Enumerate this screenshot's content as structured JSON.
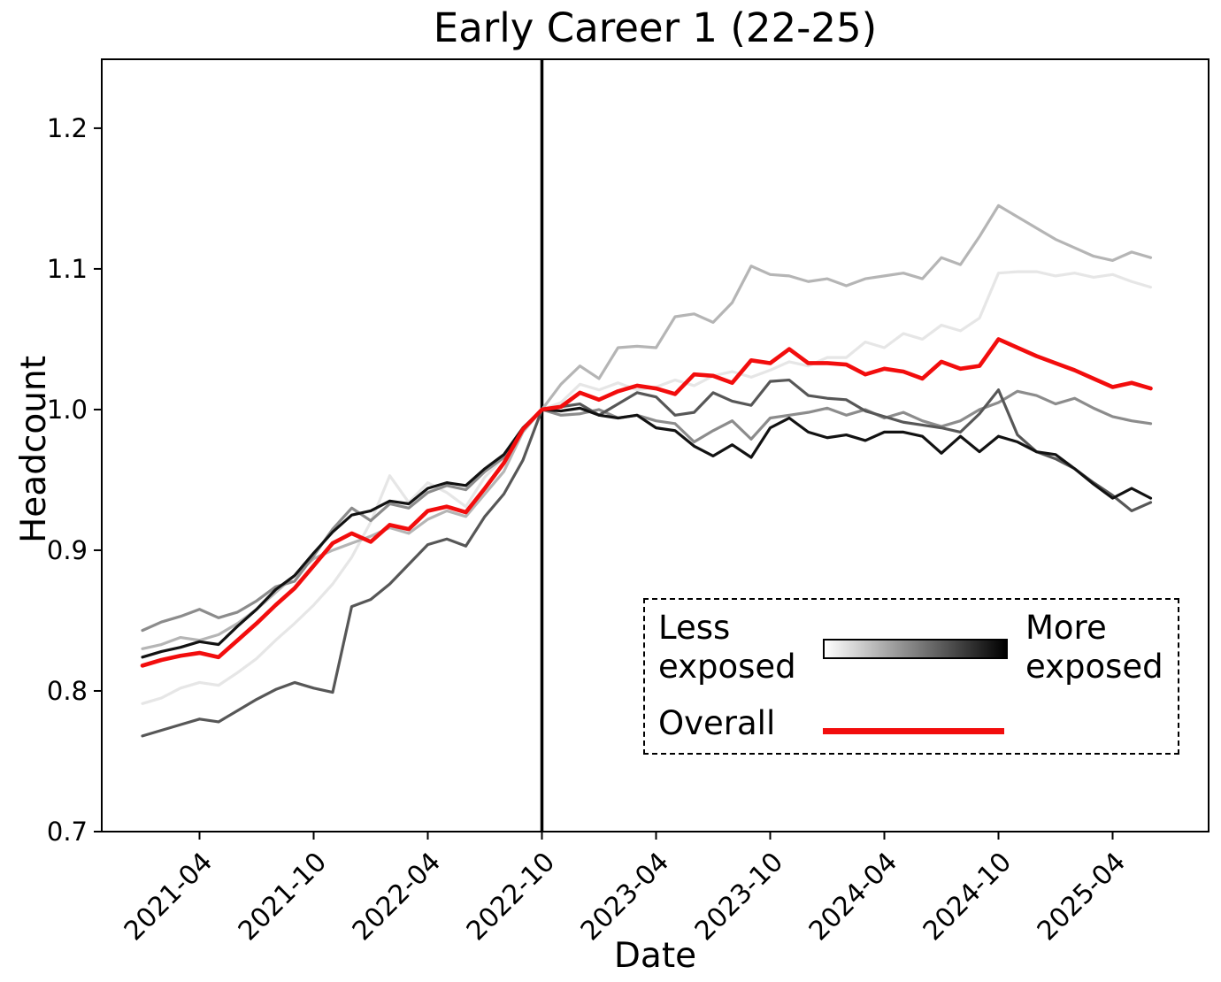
{
  "figure": {
    "title": "Early Career 1 (22-25)",
    "xlabel": "Date",
    "ylabel": "Headcount"
  },
  "chart_data": {
    "type": "line",
    "title": "Early Career 1 (22-25)",
    "xlabel": "Date",
    "ylabel": "Headcount",
    "ylim": [
      0.7,
      1.249
    ],
    "y_ticks": [
      0.7,
      0.8,
      0.9,
      1.0,
      1.1,
      1.2
    ],
    "x_tick_labels": [
      "2021-04",
      "2021-10",
      "2022-04",
      "2022-10",
      "2023-04",
      "2023-10",
      "2024-04",
      "2024-10",
      "2025-04"
    ],
    "x_tick_rotation_deg": 45,
    "event_line_x": "2022-10",
    "grid": false,
    "x": [
      "2021-01",
      "2021-02",
      "2021-03",
      "2021-04",
      "2021-05",
      "2021-06",
      "2021-07",
      "2021-08",
      "2021-09",
      "2021-10",
      "2021-11",
      "2021-12",
      "2022-01",
      "2022-02",
      "2022-03",
      "2022-04",
      "2022-05",
      "2022-06",
      "2022-07",
      "2022-08",
      "2022-09",
      "2022-10",
      "2022-11",
      "2022-12",
      "2023-01",
      "2023-02",
      "2023-03",
      "2023-04",
      "2023-05",
      "2023-06",
      "2023-07",
      "2023-08",
      "2023-09",
      "2023-10",
      "2023-11",
      "2023-12",
      "2024-01",
      "2024-02",
      "2024-03",
      "2024-04",
      "2024-05",
      "2024-06",
      "2024-07",
      "2024-08",
      "2024-09",
      "2024-10",
      "2024-11",
      "2024-12",
      "2025-01",
      "2025-02",
      "2025-03",
      "2025-04",
      "2025-05",
      "2025-06"
    ],
    "series": [
      {
        "name": "exposure_quintile_1_least_exposed",
        "color": "#e6e6e6",
        "values": [
          0.791,
          0.795,
          0.802,
          0.806,
          0.804,
          0.813,
          0.823,
          0.836,
          0.848,
          0.861,
          0.876,
          0.895,
          0.92,
          0.953,
          0.934,
          0.948,
          0.941,
          0.931,
          0.952,
          0.966,
          0.985,
          1.0,
          1.005,
          1.018,
          1.014,
          1.019,
          1.014,
          1.016,
          1.021,
          1.017,
          1.024,
          1.027,
          1.023,
          1.028,
          1.034,
          1.031,
          1.037,
          1.037,
          1.048,
          1.044,
          1.054,
          1.05,
          1.06,
          1.056,
          1.065,
          1.097,
          1.098,
          1.098,
          1.095,
          1.097,
          1.094,
          1.096,
          1.091,
          1.087
        ]
      },
      {
        "name": "exposure_quintile_2",
        "color": "#b5b5b5",
        "values": [
          0.83,
          0.833,
          0.838,
          0.836,
          0.84,
          0.848,
          0.858,
          0.87,
          0.882,
          0.894,
          0.9,
          0.905,
          0.91,
          0.916,
          0.912,
          0.922,
          0.928,
          0.924,
          0.94,
          0.956,
          0.984,
          1.0,
          1.018,
          1.031,
          1.022,
          1.044,
          1.045,
          1.044,
          1.066,
          1.068,
          1.062,
          1.076,
          1.102,
          1.096,
          1.095,
          1.091,
          1.093,
          1.088,
          1.093,
          1.095,
          1.097,
          1.093,
          1.108,
          1.103,
          1.123,
          1.145,
          1.137,
          1.129,
          1.121,
          1.115,
          1.109,
          1.106,
          1.112,
          1.108
        ]
      },
      {
        "name": "exposure_quintile_3",
        "color": "#8c8c8c",
        "values": [
          0.843,
          0.849,
          0.853,
          0.858,
          0.852,
          0.856,
          0.864,
          0.874,
          0.878,
          0.896,
          0.915,
          0.93,
          0.921,
          0.933,
          0.93,
          0.941,
          0.946,
          0.943,
          0.956,
          0.966,
          0.986,
          1.0,
          0.996,
          0.997,
          1.0,
          0.994,
          0.996,
          0.992,
          0.99,
          0.977,
          0.985,
          0.992,
          0.979,
          0.994,
          0.996,
          0.998,
          1.001,
          0.996,
          1.0,
          0.994,
          0.998,
          0.992,
          0.988,
          0.992,
          1.0,
          1.005,
          1.013,
          1.01,
          1.004,
          1.008,
          1.001,
          0.995,
          0.992,
          0.99
        ]
      },
      {
        "name": "exposure_quintile_4",
        "color": "#575757",
        "values": [
          0.768,
          0.772,
          0.776,
          0.78,
          0.778,
          0.786,
          0.794,
          0.801,
          0.806,
          0.802,
          0.799,
          0.86,
          0.865,
          0.876,
          0.89,
          0.904,
          0.908,
          0.903,
          0.924,
          0.94,
          0.964,
          1.0,
          1.002,
          1.004,
          0.996,
          1.004,
          1.012,
          1.009,
          0.996,
          0.998,
          1.012,
          1.006,
          1.003,
          1.02,
          1.021,
          1.01,
          1.008,
          1.007,
          0.999,
          0.995,
          0.991,
          0.989,
          0.987,
          0.984,
          0.997,
          1.014,
          0.982,
          0.97,
          0.965,
          0.958,
          0.948,
          0.939,
          0.928,
          0.934
        ]
      },
      {
        "name": "exposure_quintile_5_most_exposed",
        "color": "#121212",
        "values": [
          0.824,
          0.828,
          0.831,
          0.835,
          0.833,
          0.846,
          0.858,
          0.872,
          0.882,
          0.898,
          0.913,
          0.925,
          0.928,
          0.935,
          0.933,
          0.944,
          0.948,
          0.946,
          0.958,
          0.968,
          0.987,
          1.0,
          0.999,
          1.001,
          0.996,
          0.994,
          0.996,
          0.987,
          0.985,
          0.974,
          0.967,
          0.975,
          0.966,
          0.987,
          0.994,
          0.984,
          0.98,
          0.982,
          0.978,
          0.984,
          0.984,
          0.981,
          0.969,
          0.981,
          0.97,
          0.981,
          0.977,
          0.97,
          0.968,
          0.958,
          0.947,
          0.937,
          0.944,
          0.937
        ]
      },
      {
        "name": "overall",
        "color": "#f20d0d",
        "values": [
          0.818,
          0.822,
          0.825,
          0.827,
          0.824,
          0.836,
          0.848,
          0.861,
          0.873,
          0.889,
          0.905,
          0.912,
          0.906,
          0.918,
          0.915,
          0.928,
          0.931,
          0.927,
          0.944,
          0.962,
          0.986,
          1.0,
          1.002,
          1.012,
          1.007,
          1.013,
          1.017,
          1.015,
          1.011,
          1.025,
          1.024,
          1.019,
          1.035,
          1.033,
          1.043,
          1.033,
          1.033,
          1.032,
          1.025,
          1.029,
          1.027,
          1.022,
          1.034,
          1.029,
          1.031,
          1.05,
          1.044,
          1.038,
          1.033,
          1.028,
          1.022,
          1.016,
          1.019,
          1.015
        ]
      }
    ],
    "legend": {
      "less_label": "Less\nexposed",
      "more_label": "More\nexposed",
      "overall_label": "Overall",
      "gradient_left": "#ffffff",
      "gradient_right": "#000000",
      "overall_color": "#f20d0d"
    }
  }
}
